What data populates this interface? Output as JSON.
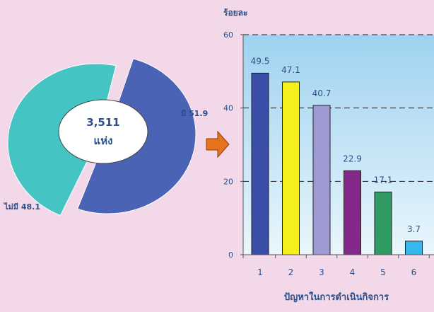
{
  "theme": {
    "background": "#f3d8ea",
    "text": "#2a4f8a",
    "plot_gradient_top": "#9ed2f0",
    "plot_gradient_bottom": "#eaf6fc",
    "arrow": "#e8731e"
  },
  "chart_data": [
    {
      "type": "pie",
      "center_label_lines": [
        "3,511",
        "แห่ง"
      ],
      "slices": [
        {
          "label": "มี 51.9",
          "value": 51.9,
          "color": "#4a63b4"
        },
        {
          "label": "ไม่มี 48.1",
          "value": 48.1,
          "color": "#46c3c3"
        }
      ]
    },
    {
      "type": "bar",
      "ylabel": "ร้อยละ",
      "xlabel": "ปัญหาในการดำเนินกิจการ",
      "categories": [
        "1",
        "2",
        "3",
        "4",
        "5",
        "6"
      ],
      "values": [
        49.5,
        47.1,
        40.7,
        22.9,
        17.1,
        3.7
      ],
      "value_labels": [
        "49.5",
        "47.1",
        "40.7",
        "22.9",
        "17.1",
        "3.7"
      ],
      "colors": [
        "#3a4ea7",
        "#f6ef1e",
        "#a09ad2",
        "#84288a",
        "#2f9a62",
        "#36b8ee"
      ],
      "ylim": [
        0,
        60
      ],
      "yticks": [
        "0",
        "20",
        "40",
        "60"
      ],
      "yticks_values": [
        0,
        20,
        40,
        60
      ],
      "grid": true
    }
  ]
}
